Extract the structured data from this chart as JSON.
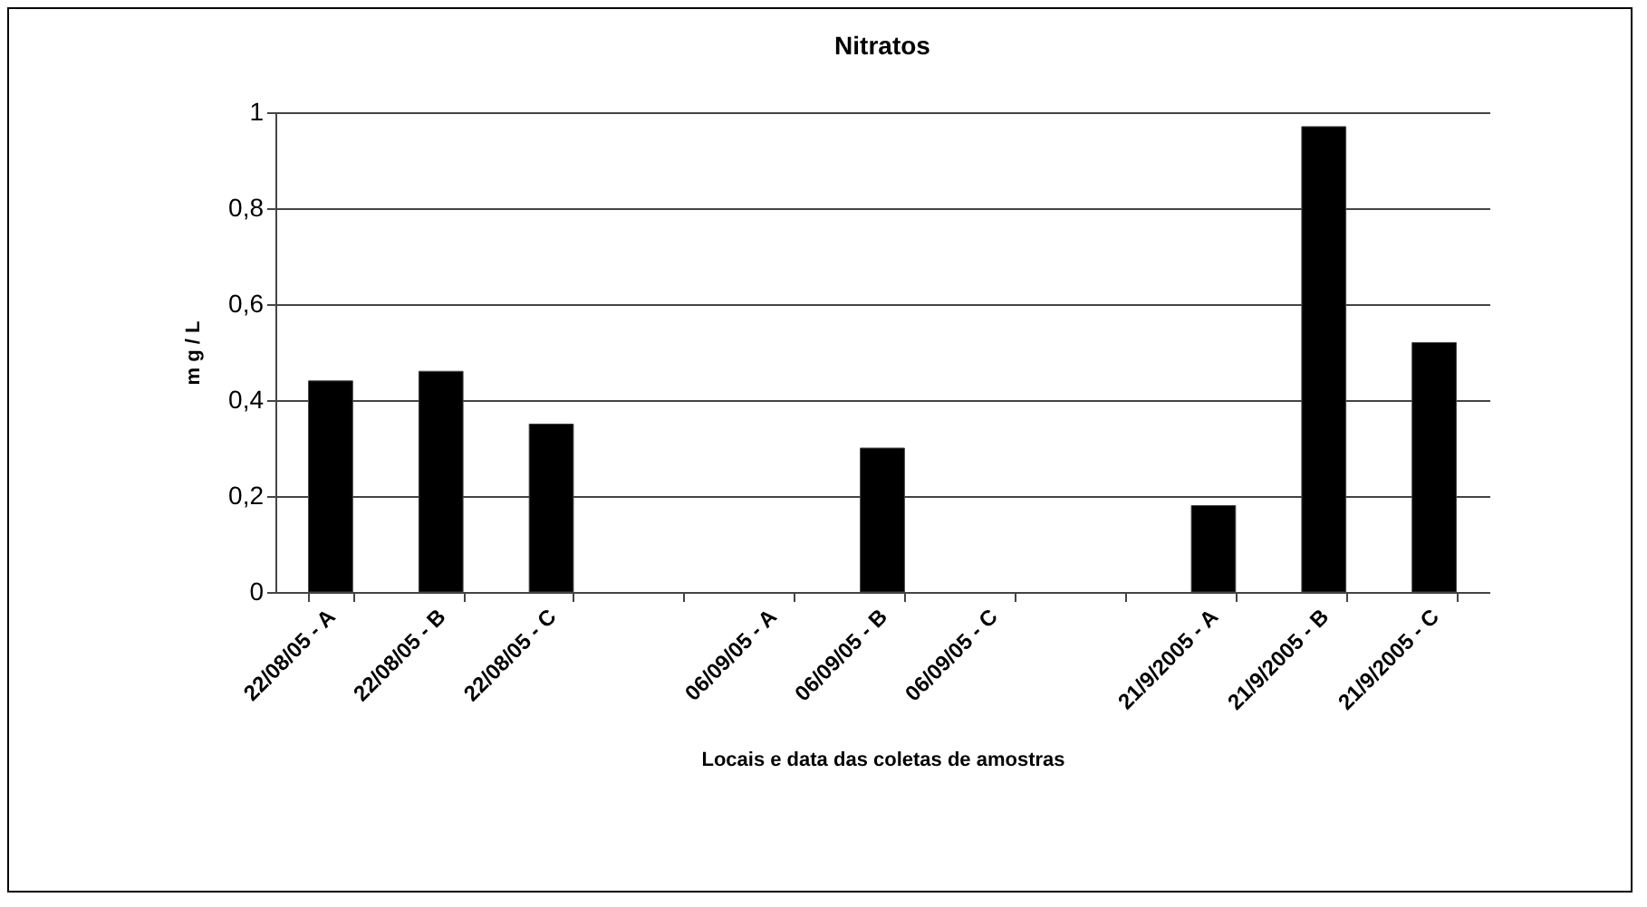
{
  "chart_data": {
    "type": "bar",
    "title": "Nitratos",
    "xlabel": "Locais e data das coletas de amostras",
    "ylabel": "m g / L",
    "categories": [
      "22/08/05 - A",
      "22/08/05 - B",
      "22/08/05 - C",
      null,
      "06/09/05 - A",
      "06/09/05 - B",
      "06/09/05 - C",
      null,
      "21/9/2005 - A",
      "21/9/2005 - B",
      "21/9/2005 - C"
    ],
    "values": [
      0.44,
      0.46,
      0.35,
      null,
      null,
      0.3,
      null,
      null,
      0.18,
      0.97,
      0.52
    ],
    "color": "#000000",
    "ylim": [
      0,
      1
    ],
    "yticks": [
      0,
      {
        "value": 0.2,
        "label": "0,2"
      },
      {
        "value": 0.4,
        "label": "0,4"
      },
      {
        "value": 0.6,
        "label": "0,6"
      },
      {
        "value": 0.8,
        "label": "0,8"
      },
      1
    ],
    "grid": "y"
  }
}
